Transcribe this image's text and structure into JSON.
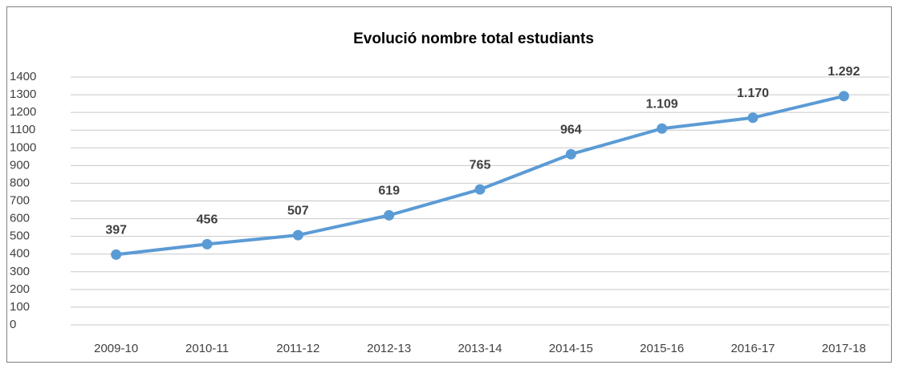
{
  "chart_data": {
    "type": "line",
    "title": "Evolució nombre total estudiants",
    "categories": [
      "2009-10",
      "2010-11",
      "2011-12",
      "2012-13",
      "2013-14",
      "2014-15",
      "2015-16",
      "2016-17",
      "2017-18"
    ],
    "values": [
      397,
      456,
      507,
      619,
      765,
      964,
      1109,
      1170,
      1292
    ],
    "value_labels": [
      "397",
      "456",
      "507",
      "619",
      "765",
      "964",
      "1.109",
      "1.170",
      "1.292"
    ],
    "color": "#5b9bd5",
    "ylim": [
      0,
      1400
    ],
    "yticks": [
      0,
      100,
      200,
      300,
      400,
      500,
      600,
      700,
      800,
      900,
      1000,
      1100,
      1200,
      1300,
      1400
    ],
    "grid": true
  }
}
